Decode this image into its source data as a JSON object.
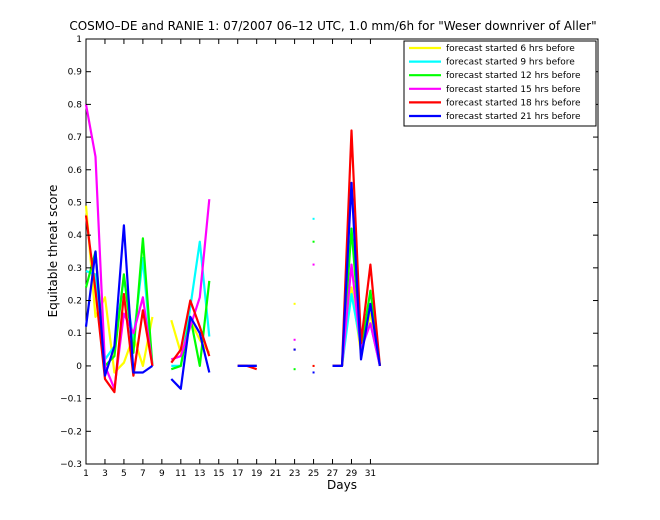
{
  "chart_data": {
    "type": "line",
    "title": "COSMO–DE and RANIE 1: 07/2007 06–12 UTC, 1.0 mm/6h for \"Weser downriver of Aller\"",
    "xlabel": "Days",
    "ylabel": "Equitable threat score",
    "xlim": [
      1,
      55
    ],
    "ylim": [
      -0.3,
      1
    ],
    "xticks": [
      1,
      3,
      5,
      7,
      9,
      11,
      13,
      15,
      17,
      19,
      21,
      23,
      25,
      27,
      29,
      31
    ],
    "yticks": [
      -0.3,
      -0.2,
      -0.1,
      0,
      0.1,
      0.2,
      0.3,
      0.4,
      0.5,
      0.6,
      0.7,
      0.8,
      0.9,
      1
    ],
    "ytick_labels": [
      "−0.3",
      "−0.2",
      "−0.1",
      "0",
      "0.1",
      "0.2",
      "0.3",
      "0.4",
      "0.5",
      "0.6",
      "0.7",
      "0.8",
      "0.9",
      "1"
    ],
    "grid": false,
    "legend_position": "top-right",
    "series": [
      {
        "name": "forecast started 6 hrs before",
        "color": "#ffff00",
        "values": [
          0.49,
          0.15,
          0.21,
          -0.02,
          0.01,
          0.09,
          0.0,
          0.15,
          null,
          0.14,
          0.04,
          0.14,
          0.08,
          0.04,
          null,
          null,
          0.0,
          0.0,
          0.0,
          null,
          null,
          null,
          0.19,
          null,
          0.0,
          null,
          0.0,
          0.0,
          0.24,
          0.04,
          0.16,
          0.0
        ]
      },
      {
        "name": "forecast started 9 hrs before",
        "color": "#00ffff",
        "values": [
          0.29,
          0.28,
          0.02,
          0.06,
          0.27,
          0.08,
          0.33,
          0.0,
          null,
          0.0,
          0.0,
          0.18,
          0.38,
          0.09,
          null,
          null,
          0.0,
          0.0,
          0.0,
          null,
          null,
          null,
          0.05,
          null,
          0.45,
          null,
          0.0,
          0.0,
          0.22,
          0.06,
          0.13,
          0.0
        ]
      },
      {
        "name": "forecast started 12 hrs before",
        "color": "#00ff00",
        "values": [
          0.24,
          0.35,
          0.0,
          0.03,
          0.28,
          0.04,
          0.39,
          0.0,
          null,
          -0.01,
          0.0,
          0.15,
          0.0,
          0.26,
          null,
          null,
          0.0,
          0.0,
          0.0,
          null,
          null,
          null,
          -0.01,
          null,
          0.38,
          null,
          0.0,
          0.0,
          0.42,
          0.05,
          0.23,
          0.0
        ]
      },
      {
        "name": "forecast started 15 hrs before",
        "color": "#ff00ff",
        "values": [
          0.8,
          0.64,
          0.0,
          -0.07,
          0.16,
          0.1,
          0.21,
          0.0,
          null,
          0.02,
          0.03,
          0.12,
          0.21,
          0.51,
          null,
          null,
          0.0,
          0.0,
          0.0,
          null,
          null,
          null,
          0.08,
          null,
          0.31,
          null,
          0.0,
          0.0,
          0.31,
          0.05,
          0.13,
          0.0
        ]
      },
      {
        "name": "forecast started 18 hrs before",
        "color": "#ff0000",
        "values": [
          0.46,
          0.23,
          -0.04,
          -0.08,
          0.22,
          -0.03,
          0.17,
          0.0,
          null,
          0.01,
          0.05,
          0.2,
          0.12,
          0.03,
          null,
          null,
          0.0,
          0.0,
          -0.01,
          null,
          null,
          null,
          0.05,
          null,
          0.0,
          null,
          0.0,
          0.0,
          0.72,
          0.07,
          0.31,
          0.0
        ]
      },
      {
        "name": "forecast started 21 hrs before",
        "color": "#0000ff",
        "values": [
          0.12,
          0.35,
          -0.03,
          0.06,
          0.43,
          -0.02,
          -0.02,
          0.0,
          null,
          -0.04,
          -0.07,
          0.15,
          0.1,
          -0.02,
          null,
          null,
          0.0,
          0.0,
          0.0,
          null,
          null,
          null,
          0.05,
          null,
          -0.02,
          null,
          0.0,
          0.0,
          0.56,
          0.02,
          0.19,
          0.0
        ]
      }
    ]
  }
}
